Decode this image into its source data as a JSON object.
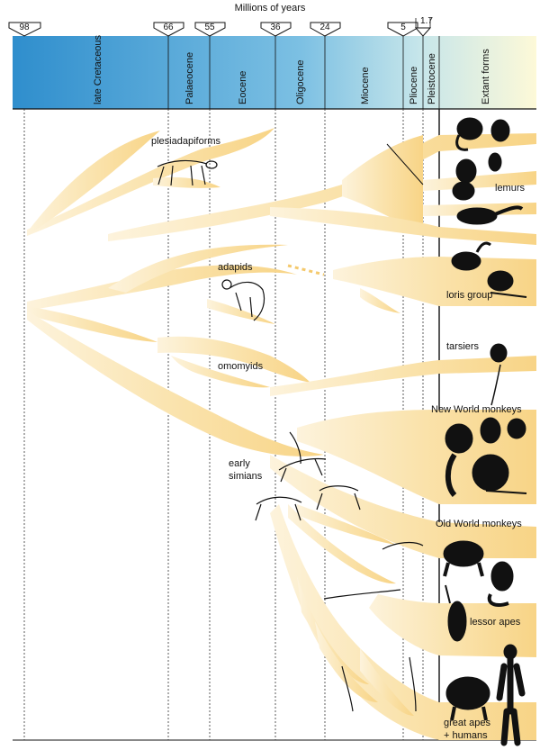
{
  "header": {
    "title": "Millions of years"
  },
  "ages": [
    "98",
    "66",
    "55",
    "36",
    "24",
    "5",
    "1.7"
  ],
  "epochs": [
    "late Cretaceous",
    "Palaeocene",
    "Eocene",
    "Oligocene",
    "Miocene",
    "Pliocene",
    "Pleistocene",
    "Extant forms"
  ],
  "groups": {
    "plesiadapiforms": "plesiadapiforms",
    "adapids": "adapids",
    "omomyids": "omomyids",
    "early_simians": [
      "early",
      "simians"
    ],
    "lemurs": "lemurs",
    "loris_group": "loris group",
    "tarsiers": "tarsiers",
    "new_world_monkeys": "New World monkeys",
    "old_world_monkeys": "Old World monkeys",
    "lessor_apes": "lessor apes",
    "great_apes": [
      "great apes",
      "+ humans"
    ]
  },
  "colors": {
    "branch": "#f7d27e",
    "header_left": "#2f8ecd",
    "header_right": "#fdf9d8",
    "silhouette": "#111111"
  }
}
